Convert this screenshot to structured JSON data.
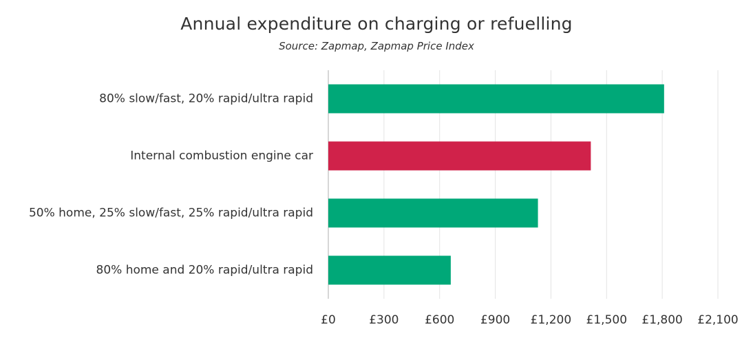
{
  "chart_data": {
    "type": "bar",
    "orientation": "horizontal",
    "title": "Annual expenditure on charging or refuelling",
    "subtitle": "Source: Zapmap, Zapmap Price Index",
    "categories": [
      "80% slow/fast, 20% rapid/ultra rapid",
      "Internal combustion engine car",
      "50% home, 25% slow/fast, 25% rapid/ultra rapid",
      "80% home and 20% rapid/ultra rapid"
    ],
    "values": [
      1810,
      1415,
      1130,
      660
    ],
    "bar_colors": [
      "#00a878",
      "#d0224a",
      "#00a878",
      "#00a878"
    ],
    "xlim": [
      0,
      2100
    ],
    "xticks": [
      0,
      300,
      600,
      900,
      1200,
      1500,
      1800,
      2100
    ],
    "xtick_labels": [
      "£0",
      "£300",
      "£600",
      "£900",
      "£1,200",
      "£1,500",
      "£1,800",
      "£2,100"
    ],
    "grid": "vertical",
    "legend": "none"
  }
}
